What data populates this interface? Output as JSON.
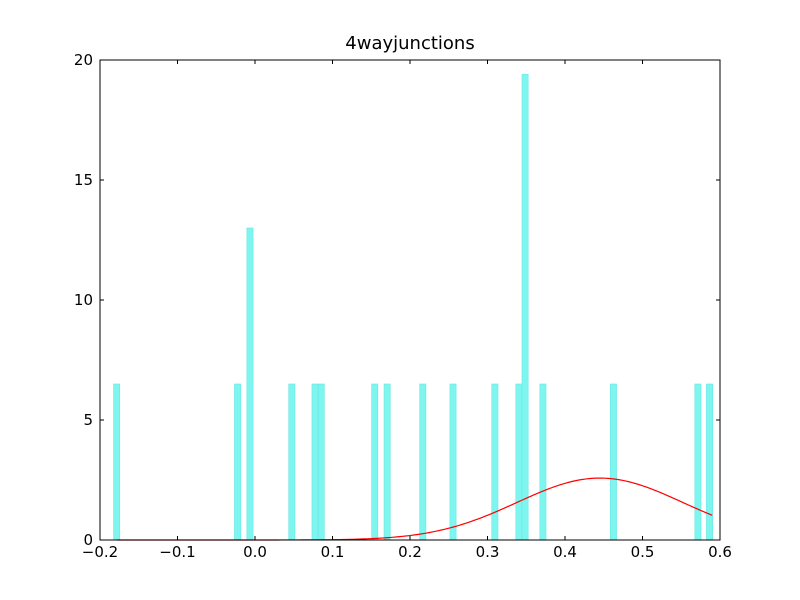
{
  "chart_data": {
    "type": "bar",
    "title": "4wayjunctions",
    "xlabel": "",
    "ylabel": "",
    "xlim": [
      -0.2,
      0.6
    ],
    "ylim": [
      0,
      20
    ],
    "xticks": [
      "−0.2",
      "−0.1",
      "0.0",
      "0.1",
      "0.2",
      "0.3",
      "0.4",
      "0.5",
      "0.6"
    ],
    "xtick_values": [
      -0.2,
      -0.1,
      0.0,
      0.1,
      0.2,
      0.3,
      0.4,
      0.5,
      0.6
    ],
    "yticks": [
      "0",
      "5",
      "10",
      "15",
      "20"
    ],
    "ytick_values": [
      0,
      5,
      10,
      15,
      20
    ],
    "grid": false,
    "histogram": {
      "color": "#7ff5f0",
      "bin_width": 0.008,
      "bars": [
        {
          "x": -0.1785,
          "value": 6.5
        },
        {
          "x": -0.0225,
          "value": 6.5
        },
        {
          "x": -0.0065,
          "value": 13.0
        },
        {
          "x": 0.0475,
          "value": 6.5
        },
        {
          "x": 0.0775,
          "value": 6.5
        },
        {
          "x": 0.0855,
          "value": 6.5
        },
        {
          "x": 0.1545,
          "value": 6.5
        },
        {
          "x": 0.1705,
          "value": 6.5
        },
        {
          "x": 0.2165,
          "value": 6.5
        },
        {
          "x": 0.2555,
          "value": 6.5
        },
        {
          "x": 0.3095,
          "value": 6.5
        },
        {
          "x": 0.3405,
          "value": 6.5
        },
        {
          "x": 0.3485,
          "value": 19.4
        },
        {
          "x": 0.3715,
          "value": 6.5
        },
        {
          "x": 0.4625,
          "value": 6.5
        },
        {
          "x": 0.5715,
          "value": 6.5
        },
        {
          "x": 0.5865,
          "value": 6.5
        }
      ]
    },
    "curve": {
      "color": "#ff0000",
      "type": "normal-pdf",
      "mean": 0.445,
      "peak": 2.58,
      "sigma": 0.107,
      "x_range": [
        -0.178,
        0.59
      ]
    }
  }
}
